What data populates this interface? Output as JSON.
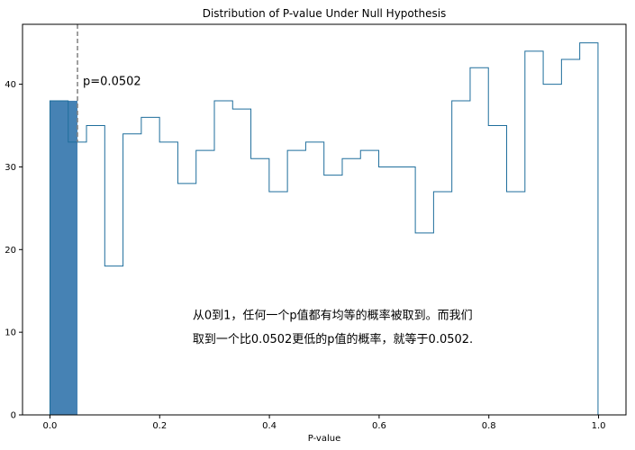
{
  "chart_data": {
    "type": "bar",
    "title": "Distribution of P-value Under Null Hypothesis",
    "xlabel": "P-value",
    "ylabel": "",
    "xlim": [
      -0.05,
      1.05
    ],
    "ylim": [
      0,
      47.25
    ],
    "xticks": [
      0.0,
      0.2,
      0.4,
      0.6,
      0.8,
      1.0
    ],
    "xtick_labels": [
      "0.0",
      "0.2",
      "0.4",
      "0.6",
      "0.8",
      "1.0"
    ],
    "yticks": [
      0,
      10,
      20,
      30,
      40
    ],
    "ytick_labels": [
      "0",
      "10",
      "20",
      "30",
      "40"
    ],
    "grid": false,
    "histogram": {
      "histtype": "step",
      "bin_start": 0.0,
      "bin_width": 0.0333,
      "counts": [
        38,
        33,
        35,
        18,
        34,
        36,
        33,
        28,
        32,
        38,
        37,
        31,
        27,
        32,
        33,
        29,
        31,
        32,
        30,
        30,
        22,
        27,
        38,
        42,
        35,
        27,
        44,
        40,
        43,
        45
      ],
      "edge_color": "#1f6e9c"
    },
    "highlight": {
      "x_from": 0.0,
      "x_to": 0.0502,
      "value": 38,
      "color": "#4682b4"
    },
    "threshold": {
      "x": 0.0502,
      "label": "p=0.0502",
      "color": "#808080"
    },
    "annotation_lines": [
      "从0到1，任何一个p值都有均等的概率被取到。而我们",
      "取到一个比0.0502更低的p值的概率，就等于0.0502."
    ]
  }
}
